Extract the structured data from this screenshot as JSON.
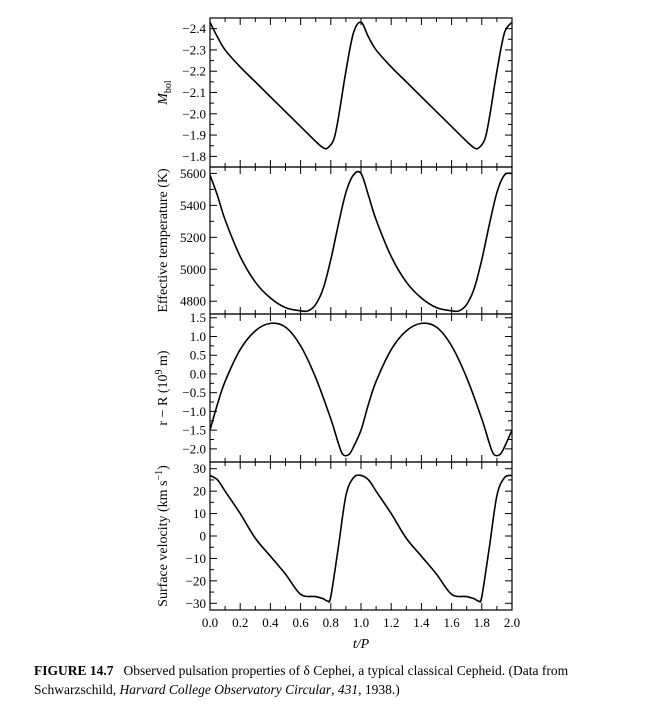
{
  "caption": {
    "label": "FIGURE 14.7",
    "text_1": "Observed pulsation properties of δ Cephei, a typical classical Cepheid. (Data from Schwarzschild,",
    "journal": "Harvard College Observatory Circular",
    "comma": ",",
    "volume": "431",
    "text_2": ", 1938.)"
  },
  "chart_data": [
    {
      "type": "line",
      "ylabel": "M_bol",
      "ylabel_main": "M",
      "ylabel_sub": "bol",
      "y_inverted": true,
      "ylim": [
        -1.75,
        -2.45
      ],
      "yticks": [
        -2.4,
        -2.3,
        -2.2,
        -2.1,
        -2.0,
        -1.9,
        -1.8
      ],
      "yticklabels": [
        "−2.4",
        "−2.3",
        "−2.2",
        "−2.1",
        "−2.0",
        "−1.9",
        "−1.8"
      ],
      "xlim": [
        0,
        2
      ],
      "x": [
        0.0,
        0.05,
        0.1,
        0.2,
        0.3,
        0.4,
        0.5,
        0.6,
        0.7,
        0.75,
        0.78,
        0.82,
        0.85,
        0.9,
        0.95,
        1.0,
        1.05,
        1.1,
        1.2,
        1.3,
        1.4,
        1.5,
        1.6,
        1.7,
        1.75,
        1.78,
        1.82,
        1.85,
        1.9,
        1.95,
        2.0
      ],
      "values": [
        -2.43,
        -2.36,
        -2.3,
        -2.22,
        -2.15,
        -2.08,
        -2.01,
        -1.94,
        -1.87,
        -1.84,
        -1.84,
        -1.88,
        -1.98,
        -2.2,
        -2.38,
        -2.43,
        -2.36,
        -2.3,
        -2.22,
        -2.15,
        -2.08,
        -2.01,
        -1.94,
        -1.87,
        -1.84,
        -1.84,
        -1.88,
        -1.98,
        -2.2,
        -2.38,
        -2.43
      ]
    },
    {
      "type": "line",
      "ylabel": "Effective temperature (K)",
      "ylim": [
        4720,
        5640
      ],
      "yticks": [
        4800,
        5000,
        5200,
        5400,
        5600
      ],
      "yticklabels": [
        "4800",
        "5000",
        "5200",
        "5400",
        "5600"
      ],
      "xlim": [
        0,
        2
      ],
      "x": [
        0.0,
        0.05,
        0.1,
        0.2,
        0.3,
        0.4,
        0.5,
        0.6,
        0.65,
        0.7,
        0.75,
        0.8,
        0.85,
        0.9,
        0.95,
        1.0,
        1.05,
        1.1,
        1.2,
        1.3,
        1.4,
        1.5,
        1.6,
        1.65,
        1.7,
        1.75,
        1.8,
        1.85,
        1.9,
        1.95,
        2.0
      ],
      "values": [
        5590,
        5460,
        5310,
        5080,
        4920,
        4820,
        4760,
        4740,
        4740,
        4780,
        4880,
        5060,
        5280,
        5480,
        5590,
        5600,
        5460,
        5310,
        5080,
        4920,
        4820,
        4760,
        4740,
        4740,
        4780,
        4880,
        5060,
        5280,
        5480,
        5590,
        5600
      ]
    },
    {
      "type": "line",
      "ylabel": "r − R (10^9 m)",
      "ylabel_main": "r − R (10",
      "ylabel_sup": "9",
      "ylabel_end": " m)",
      "ylim": [
        -2.35,
        1.6
      ],
      "yticks": [
        -2.0,
        -1.5,
        -1.0,
        -0.5,
        0.0,
        0.5,
        1.0,
        1.5
      ],
      "yticklabels": [
        "−2.0",
        "−1.5",
        "−1.0",
        "−0.5",
        "0.0",
        "0.5",
        "1.0",
        "1.5"
      ],
      "xlim": [
        0,
        2
      ],
      "x": [
        0.0,
        0.05,
        0.1,
        0.2,
        0.3,
        0.4,
        0.5,
        0.6,
        0.7,
        0.8,
        0.85,
        0.88,
        0.92,
        0.95,
        1.0,
        1.05,
        1.1,
        1.2,
        1.3,
        1.4,
        1.5,
        1.6,
        1.7,
        1.8,
        1.85,
        1.88,
        1.92,
        1.95,
        2.0
      ],
      "values": [
        -1.5,
        -0.8,
        -0.2,
        0.65,
        1.15,
        1.35,
        1.25,
        0.75,
        -0.1,
        -1.2,
        -1.85,
        -2.15,
        -2.15,
        -1.95,
        -1.5,
        -0.8,
        -0.2,
        0.65,
        1.15,
        1.35,
        1.25,
        0.75,
        -0.1,
        -1.2,
        -1.85,
        -2.15,
        -2.15,
        -1.95,
        -1.5
      ]
    },
    {
      "type": "line",
      "ylabel": "Surface velocity (km s^−1)",
      "ylabel_main": "Surface velocity (km s",
      "ylabel_sup": "−1",
      "ylabel_end": ")",
      "ylim": [
        -33,
        33
      ],
      "yticks": [
        -30,
        -20,
        -10,
        0,
        10,
        20,
        30
      ],
      "yticklabels": [
        "−30",
        "−20",
        "−10",
        "0",
        "10",
        "20",
        "30"
      ],
      "xlabel": "t/P",
      "xticks": [
        0.0,
        0.2,
        0.4,
        0.6,
        0.8,
        1.0,
        1.2,
        1.4,
        1.6,
        1.8,
        2.0
      ],
      "xticklabels": [
        "0.0",
        "0.2",
        "0.4",
        "0.6",
        "0.8",
        "1.0",
        "1.2",
        "1.4",
        "1.6",
        "1.8",
        "2.0"
      ],
      "xlim": [
        0,
        2
      ],
      "x": [
        0.0,
        0.05,
        0.1,
        0.2,
        0.3,
        0.4,
        0.5,
        0.6,
        0.7,
        0.75,
        0.78,
        0.8,
        0.85,
        0.9,
        0.95,
        1.0,
        1.05,
        1.1,
        1.2,
        1.3,
        1.4,
        1.5,
        1.6,
        1.7,
        1.75,
        1.78,
        1.8,
        1.85,
        1.9,
        1.95,
        2.0
      ],
      "values": [
        27,
        25,
        20,
        10,
        -1,
        -9,
        -17,
        -26,
        -27,
        -28,
        -29,
        -27,
        -5,
        18,
        26,
        27,
        25,
        20,
        10,
        -1,
        -9,
        -17,
        -26,
        -27,
        -28,
        -29,
        -27,
        -5,
        18,
        26,
        27
      ]
    }
  ]
}
